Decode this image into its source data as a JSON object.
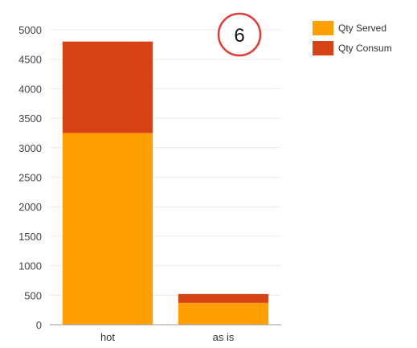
{
  "chart_data": {
    "type": "bar",
    "stacked": true,
    "categories": [
      "hot",
      "as is"
    ],
    "series": [
      {
        "name": "Qty Served",
        "values": [
          3250,
          370
        ],
        "color": "#FFA000"
      },
      {
        "name": "Qty Consum",
        "values": [
          1550,
          150
        ],
        "color": "#D84315"
      }
    ],
    "ylim": [
      0,
      5000
    ],
    "yticks": [
      0,
      500,
      1000,
      1500,
      2000,
      2500,
      3000,
      3500,
      4000,
      4500,
      5000
    ],
    "grid": true,
    "legend_position": "top-right",
    "annotation": "6"
  }
}
